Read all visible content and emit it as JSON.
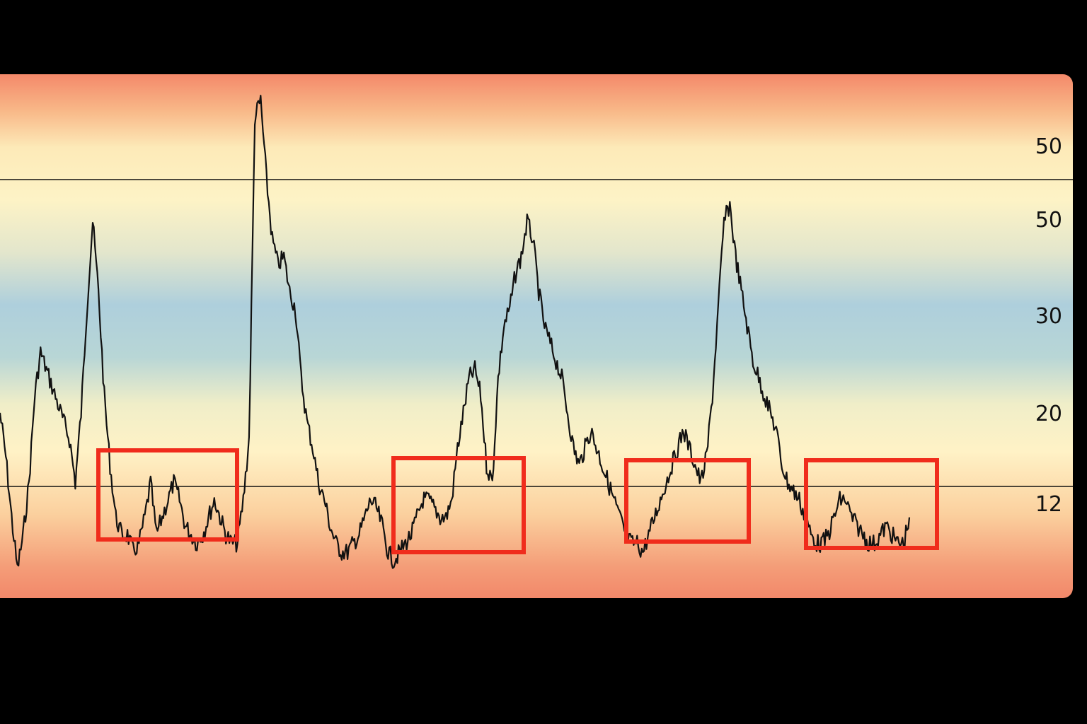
{
  "chart_data": {
    "type": "line",
    "title": "",
    "xlabel": "",
    "ylabel": "",
    "y_ticks": [
      "50",
      "50",
      "30",
      "20",
      "12"
    ],
    "reference_lines": [
      "upper",
      "lower"
    ],
    "highlight_boxes": 4,
    "series": [
      {
        "values": [
          28,
          23,
          16,
          10,
          14,
          20,
          30,
          35,
          33,
          31,
          29,
          27,
          25,
          20,
          28,
          40,
          50,
          42,
          30,
          22,
          16,
          14,
          14,
          12,
          13,
          16,
          20,
          14,
          16,
          18,
          20,
          18,
          15,
          14,
          13,
          14,
          16,
          18,
          16,
          14,
          13,
          13,
          18,
          25,
          62,
          64,
          55,
          48,
          45,
          46,
          42,
          40,
          32,
          27,
          24,
          20,
          18,
          15,
          13,
          12,
          12,
          13,
          14,
          16,
          18,
          17,
          15,
          12,
          11,
          12,
          13,
          14,
          16,
          18,
          18,
          17,
          16,
          16,
          18,
          24,
          28,
          32,
          33,
          30,
          22,
          20,
          32,
          38,
          40,
          44,
          46,
          50,
          48,
          42,
          38,
          36,
          34,
          32,
          28,
          24,
          22,
          24,
          26,
          24,
          22,
          20,
          18,
          16,
          14,
          13,
          13,
          12,
          14,
          16,
          18,
          20,
          22,
          24,
          26,
          24,
          22,
          20,
          23,
          30,
          40,
          50,
          52,
          46,
          42,
          38,
          34,
          32,
          30,
          28,
          26,
          22,
          20,
          19,
          18,
          16,
          14,
          13,
          13,
          14,
          16,
          18,
          18,
          16,
          15,
          14,
          13,
          13,
          14,
          15,
          14,
          13,
          13,
          16
        ],
        "color": "#111111"
      }
    ]
  }
}
